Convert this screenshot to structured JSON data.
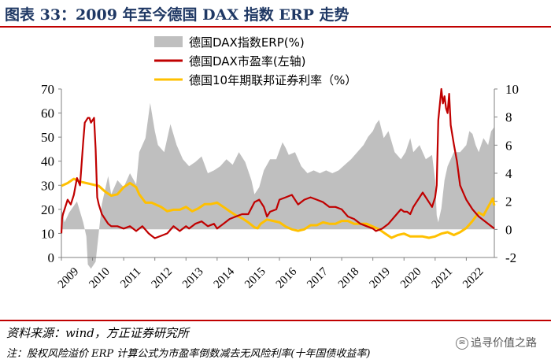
{
  "header": {
    "title": "图表 33：2009 年至今德国 DAX 指数 ERP 走势"
  },
  "footer": {
    "source": "资料来源：wind，方正证券研究所",
    "note": "注：股权风险溢价 ERP 计算公式为市盈率倒数减去无风险利率(十年国债收益率)",
    "watermark": "追寻价值之路"
  },
  "chart_data": {
    "type": "line",
    "title": "",
    "x_labels": [
      "2009",
      "2010",
      "2011",
      "2012",
      "2013",
      "2014",
      "2015",
      "2016",
      "2017",
      "2018",
      "2019",
      "2020",
      "2021",
      "2022"
    ],
    "x_range": [
      2009.0,
      2022.9
    ],
    "left_axis": {
      "range": [
        0,
        70
      ],
      "ticks": [
        "0",
        "10",
        "20",
        "30",
        "40",
        "50",
        "60",
        "70"
      ]
    },
    "right_axis": {
      "range": [
        -2,
        10
      ],
      "ticks": [
        "-2",
        "0",
        "2",
        "4",
        "6",
        "8",
        "10"
      ]
    },
    "legend": [
      "德国DAX指数ERP(%)",
      "德国DAX市盈率(左轴)",
      "德国10年期联邦证券利率（%）"
    ],
    "colors": {
      "erp": "#bfbfbf",
      "pe": "#c00000",
      "yield": "#ffc000",
      "axis": "#808080"
    },
    "series": [
      {
        "name": "德国DAX指数ERP(%)",
        "axis": "right",
        "kind": "area",
        "x": [
          2009.0,
          2009.1,
          2009.25,
          2009.5,
          2009.7,
          2009.8,
          2009.85,
          2009.95,
          2010.1,
          2010.3,
          2010.5,
          2010.6,
          2010.8,
          2011.0,
          2011.2,
          2011.4,
          2011.5,
          2011.7,
          2011.85,
          2012.0,
          2012.1,
          2012.3,
          2012.5,
          2012.7,
          2012.9,
          2013.1,
          2013.3,
          2013.5,
          2013.7,
          2013.9,
          2014.1,
          2014.3,
          2014.5,
          2014.7,
          2014.9,
          2015.1,
          2015.2,
          2015.35,
          2015.5,
          2015.7,
          2015.9,
          2016.1,
          2016.2,
          2016.3,
          2016.5,
          2016.7,
          2016.9,
          2017.1,
          2017.3,
          2017.5,
          2017.7,
          2017.9,
          2018.1,
          2018.3,
          2018.5,
          2018.7,
          2018.85,
          2019.0,
          2019.1,
          2019.2,
          2019.35,
          2019.5,
          2019.7,
          2019.9,
          2020.05,
          2020.2,
          2020.3,
          2020.5,
          2020.7,
          2020.9,
          2021.0,
          2021.05,
          2021.1,
          2021.2,
          2021.3,
          2021.4,
          2021.5,
          2021.6,
          2021.8,
          2022.0,
          2022.1,
          2022.2,
          2022.3,
          2022.4,
          2022.55,
          2022.7,
          2022.8,
          2022.9
        ],
        "values": [
          1.5,
          0.5,
          1.2,
          2.0,
          0.5,
          -0.5,
          -2.5,
          -2.8,
          -2.3,
          1.8,
          3.8,
          2.5,
          3.5,
          3.0,
          4.0,
          3.2,
          5.5,
          6.5,
          9.0,
          7.0,
          6.0,
          5.5,
          7.5,
          6.0,
          5.0,
          4.5,
          4.8,
          5.2,
          4.0,
          4.2,
          4.5,
          5.0,
          4.6,
          5.5,
          4.8,
          3.5,
          2.5,
          3.0,
          4.2,
          5.0,
          5.0,
          6.2,
          5.8,
          5.3,
          5.5,
          4.5,
          4.0,
          4.2,
          4.0,
          4.2,
          4.0,
          4.2,
          4.6,
          5.0,
          5.5,
          6.0,
          6.6,
          7.0,
          7.5,
          7.8,
          6.5,
          7.0,
          5.5,
          5.0,
          5.5,
          6.5,
          5.5,
          6.0,
          5.0,
          5.3,
          3.5,
          1.0,
          0.5,
          1.5,
          3.5,
          4.5,
          5.0,
          5.5,
          5.5,
          6.0,
          7.0,
          6.8,
          6.0,
          5.5,
          6.5,
          6.0,
          7.0,
          7.3
        ]
      },
      {
        "name": "德国DAX市盈率(左轴)",
        "axis": "left",
        "kind": "line",
        "x": [
          2009.0,
          2009.02,
          2009.05,
          2009.1,
          2009.2,
          2009.3,
          2009.4,
          2009.5,
          2009.6,
          2009.7,
          2009.75,
          2009.8,
          2009.85,
          2009.9,
          2009.95,
          2010.0,
          2010.05,
          2010.1,
          2010.15,
          2010.2,
          2010.3,
          2010.4,
          2010.5,
          2010.6,
          2010.8,
          2011.0,
          2011.2,
          2011.4,
          2011.6,
          2011.8,
          2011.9,
          2012.0,
          2012.2,
          2012.4,
          2012.6,
          2012.8,
          2013.0,
          2013.1,
          2013.3,
          2013.5,
          2013.7,
          2013.9,
          2014.0,
          2014.2,
          2014.4,
          2014.6,
          2014.8,
          2015.0,
          2015.2,
          2015.35,
          2015.5,
          2015.6,
          2015.7,
          2015.9,
          2016.0,
          2016.2,
          2016.4,
          2016.6,
          2016.8,
          2017.0,
          2017.2,
          2017.4,
          2017.6,
          2017.8,
          2018.0,
          2018.2,
          2018.4,
          2018.6,
          2018.8,
          2019.0,
          2019.1,
          2019.3,
          2019.5,
          2019.7,
          2019.9,
          2020.0,
          2020.1,
          2020.2,
          2020.3,
          2020.4,
          2020.6,
          2020.8,
          2020.9,
          2021.0,
          2021.05,
          2021.1,
          2021.2,
          2021.25,
          2021.3,
          2021.35,
          2021.4,
          2021.45,
          2021.5,
          2021.6,
          2021.7,
          2021.8,
          2021.9,
          2022.0,
          2022.2,
          2022.4,
          2022.6,
          2022.8,
          2022.9
        ],
        "values": [
          10,
          16,
          18,
          20,
          24,
          22,
          26,
          33,
          30,
          48,
          56,
          57,
          58,
          58,
          56,
          57,
          58,
          45,
          25,
          22,
          18,
          16,
          14,
          13,
          13,
          12,
          13,
          11,
          13,
          10,
          9,
          8,
          9,
          10,
          13,
          11,
          13,
          12,
          14,
          15,
          13,
          14,
          12,
          14,
          16,
          17,
          18,
          18,
          23,
          24,
          21,
          17,
          19,
          20,
          24,
          25,
          26,
          22,
          24,
          25,
          24,
          23,
          21,
          21,
          20,
          17,
          16,
          14,
          13,
          12,
          11,
          12,
          14,
          17,
          20,
          19,
          19,
          18,
          21,
          23,
          27,
          23,
          21,
          25,
          30,
          57,
          70,
          64,
          67,
          62,
          60,
          68,
          55,
          47,
          40,
          30,
          27,
          24,
          20,
          17,
          15,
          13,
          12
        ]
      },
      {
        "name": "德国10年期联邦证券利率（%）",
        "axis": "right",
        "kind": "line",
        "x": [
          2009.0,
          2009.2,
          2009.4,
          2009.6,
          2009.8,
          2010.0,
          2010.2,
          2010.4,
          2010.6,
          2010.8,
          2011.0,
          2011.2,
          2011.4,
          2011.5,
          2011.6,
          2011.7,
          2011.9,
          2012.0,
          2012.2,
          2012.4,
          2012.6,
          2012.8,
          2013.0,
          2013.2,
          2013.4,
          2013.6,
          2013.8,
          2014.0,
          2014.2,
          2014.4,
          2014.6,
          2014.8,
          2015.0,
          2015.2,
          2015.3,
          2015.4,
          2015.6,
          2015.8,
          2016.0,
          2016.2,
          2016.4,
          2016.6,
          2016.8,
          2017.0,
          2017.2,
          2017.4,
          2017.6,
          2017.8,
          2018.0,
          2018.2,
          2018.4,
          2018.6,
          2018.8,
          2019.0,
          2019.2,
          2019.4,
          2019.6,
          2019.8,
          2020.0,
          2020.2,
          2020.4,
          2020.6,
          2020.8,
          2021.0,
          2021.2,
          2021.4,
          2021.6,
          2021.8,
          2022.0,
          2022.2,
          2022.4,
          2022.55,
          2022.7,
          2022.85,
          2022.9
        ],
        "values": [
          3.1,
          3.3,
          3.6,
          3.4,
          3.3,
          3.2,
          3.1,
          2.7,
          2.4,
          2.5,
          3.0,
          3.3,
          3.0,
          2.5,
          2.2,
          1.9,
          1.9,
          1.8,
          1.6,
          1.3,
          1.4,
          1.4,
          1.6,
          1.3,
          1.5,
          1.8,
          1.8,
          1.9,
          1.6,
          1.3,
          1.0,
          0.8,
          0.5,
          0.15,
          0.08,
          0.4,
          0.7,
          0.6,
          0.5,
          0.2,
          0.0,
          -0.1,
          0.0,
          0.3,
          0.3,
          0.5,
          0.4,
          0.4,
          0.6,
          0.6,
          0.4,
          0.4,
          0.4,
          0.2,
          0.0,
          -0.3,
          -0.6,
          -0.4,
          -0.3,
          -0.5,
          -0.5,
          -0.5,
          -0.6,
          -0.5,
          -0.3,
          -0.2,
          -0.4,
          -0.2,
          0.1,
          0.6,
          1.2,
          1.0,
          1.6,
          2.2,
          1.7
        ]
      }
    ]
  }
}
